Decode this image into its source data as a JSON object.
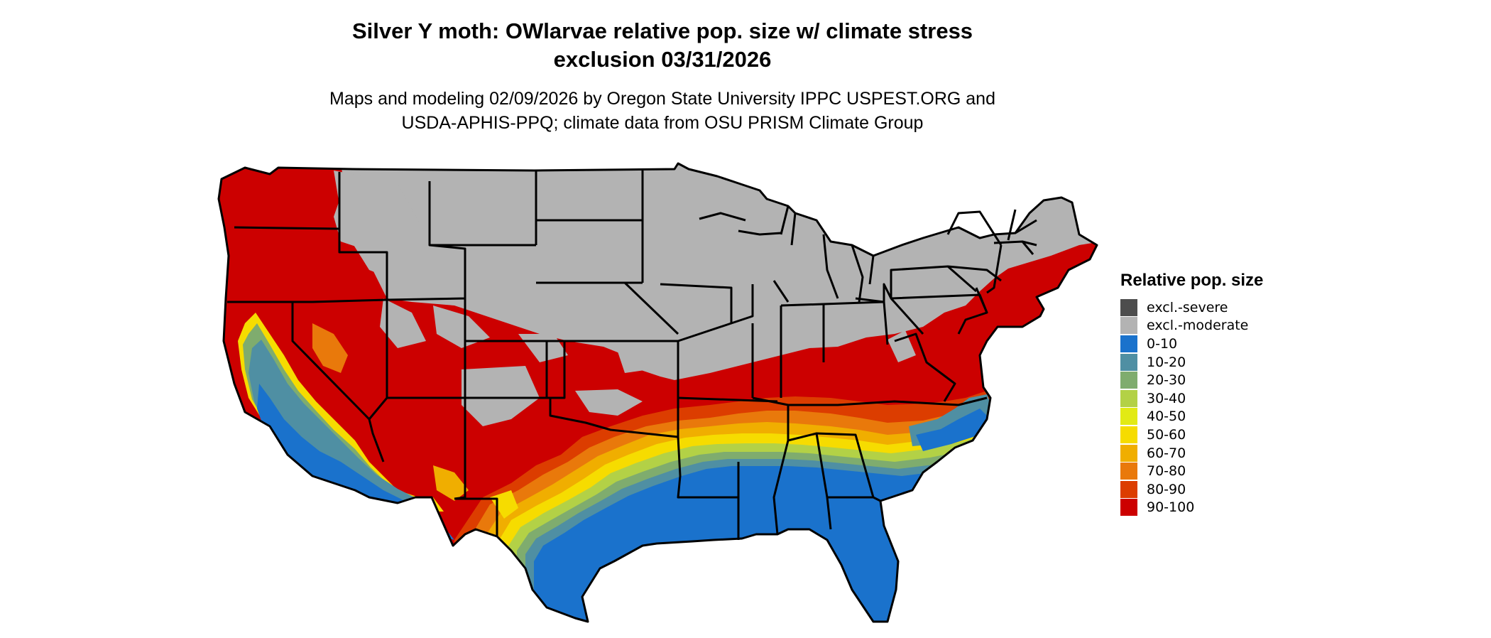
{
  "title": {
    "line1": "Silver Y moth: OWlarvae relative pop. size w/ climate stress",
    "line2": "exclusion 03/31/2026"
  },
  "subtitle": {
    "line1": "Maps and modeling 02/09/2026 by Oregon State University IPPC USPEST.ORG and",
    "line2": "USDA-APHIS-PPQ; climate data from OSU PRISM Climate Group"
  },
  "legend": {
    "title": "Relative pop. size",
    "items": [
      {
        "label": "excl.-severe",
        "color": "#4d4d4d"
      },
      {
        "label": "excl.-moderate",
        "color": "#b3b3b3"
      },
      {
        "label": "0-10",
        "color": "#1a72cc"
      },
      {
        "label": "10-20",
        "color": "#4f8fa3"
      },
      {
        "label": "20-30",
        "color": "#7fac6e"
      },
      {
        "label": "30-40",
        "color": "#b3d146"
      },
      {
        "label": "40-50",
        "color": "#e2ea14"
      },
      {
        "label": "50-60",
        "color": "#f6dc00"
      },
      {
        "label": "60-70",
        "color": "#f0ae00"
      },
      {
        "label": "70-80",
        "color": "#e9790b"
      },
      {
        "label": "80-90",
        "color": "#dc3d00"
      },
      {
        "label": "90-100",
        "color": "#cc0000"
      }
    ]
  }
}
